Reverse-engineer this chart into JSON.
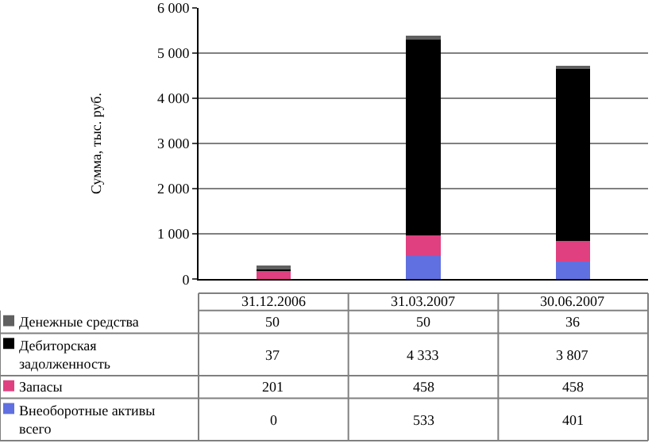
{
  "chart_data": {
    "type": "bar",
    "stacked": true,
    "ylabel": "Сумма, тыс. руб.",
    "categories": [
      "31.12.2006",
      "31.03.2007",
      "30.06.2007"
    ],
    "series": [
      {
        "name": "Внеоборотные активы всего",
        "color": "#6070e0",
        "values": [
          0,
          533,
          401
        ],
        "value_labels": [
          "0",
          "533",
          "401"
        ]
      },
      {
        "name": "Запасы",
        "color": "#e04080",
        "values": [
          201,
          458,
          458
        ],
        "value_labels": [
          "201",
          "458",
          "458"
        ]
      },
      {
        "name": "Дебиторская задолженность",
        "color": "#000000",
        "values": [
          37,
          4333,
          3807
        ],
        "value_labels": [
          "37",
          "4 333",
          "3 807"
        ]
      },
      {
        "name": "Денежные средства",
        "color": "#606060",
        "values": [
          50,
          50,
          36
        ],
        "value_labels": [
          "50",
          "50",
          "36"
        ]
      }
    ],
    "ylim": [
      0,
      6000
    ],
    "yticks": [
      0,
      {
        "value": 1000,
        "label": "1 000"
      },
      {
        "value": 2000,
        "label": "2 000"
      },
      {
        "value": 3000,
        "label": "3 000"
      },
      {
        "value": 4000,
        "label": "4 000"
      },
      {
        "value": 5000,
        "label": "5 000"
      },
      {
        "value": 6000,
        "label": "6 000"
      }
    ],
    "grid": "y",
    "legend": "bottom"
  }
}
